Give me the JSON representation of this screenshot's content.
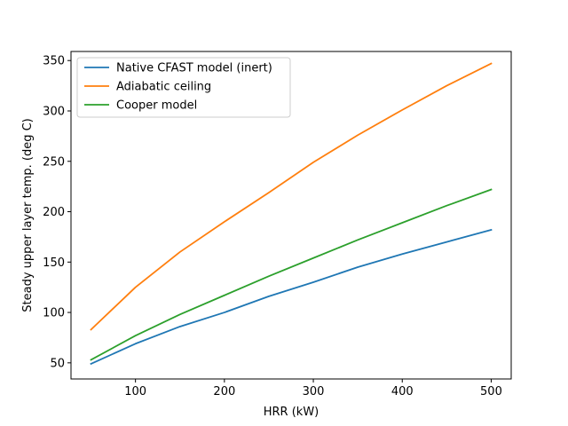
{
  "chart_data": {
    "type": "line",
    "title": "",
    "xlabel": "HRR (kW)",
    "ylabel": "Steady upper layer temp. (deg C)",
    "xlim": [
      27.5,
      522.5
    ],
    "ylim": [
      34,
      359
    ],
    "xticks": [
      100,
      200,
      300,
      400,
      500
    ],
    "yticks": [
      50,
      100,
      150,
      200,
      250,
      300,
      350
    ],
    "grid": false,
    "legend_position": "top-left",
    "series": [
      {
        "name": "Native CFAST model (inert)",
        "color": "#1f77b4",
        "x": [
          50,
          100,
          150,
          200,
          250,
          300,
          350,
          400,
          450,
          500
        ],
        "y": [
          49,
          69,
          86,
          100,
          116,
          130,
          145,
          158,
          170,
          182
        ]
      },
      {
        "name": "Adiabatic ceiling",
        "color": "#ff7f0e",
        "x": [
          50,
          100,
          150,
          200,
          250,
          300,
          350,
          400,
          450,
          500
        ],
        "y": [
          83,
          125,
          160,
          190,
          219,
          249,
          276,
          301,
          325,
          347
        ]
      },
      {
        "name": "Cooper model",
        "color": "#2ca02c",
        "x": [
          50,
          100,
          150,
          200,
          250,
          300,
          350,
          400,
          450,
          500
        ],
        "y": [
          53,
          77,
          98,
          117,
          136,
          154,
          172,
          189,
          206,
          222
        ]
      }
    ]
  }
}
